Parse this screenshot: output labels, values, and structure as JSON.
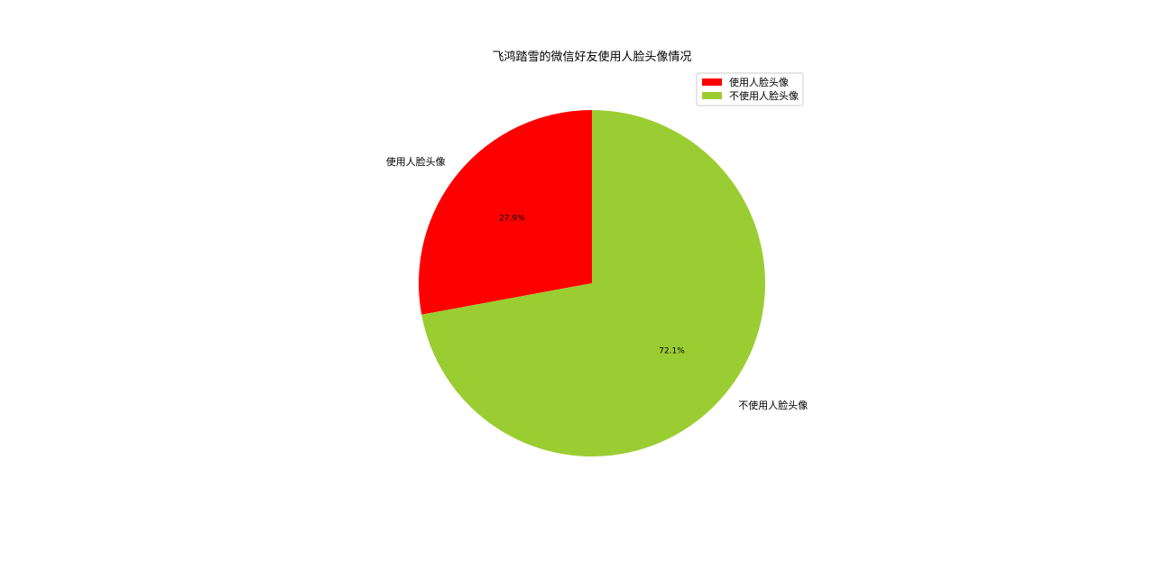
{
  "chart_data": {
    "type": "pie",
    "title": "飞鸿踏雪的微信好友使用人脸头像情况",
    "categories": [
      "使用人脸头像",
      "不使用人脸头像"
    ],
    "values": [
      27.9,
      72.1
    ],
    "percent_labels": [
      "27.9%",
      "72.1%"
    ],
    "colors": [
      "#ff0000",
      "#9acd32"
    ],
    "start_angle": 90,
    "direction": "counterclockwise",
    "legend": {
      "placement": "top-right",
      "entries": [
        "使用人脸头像",
        "不使用人脸头像"
      ]
    }
  }
}
